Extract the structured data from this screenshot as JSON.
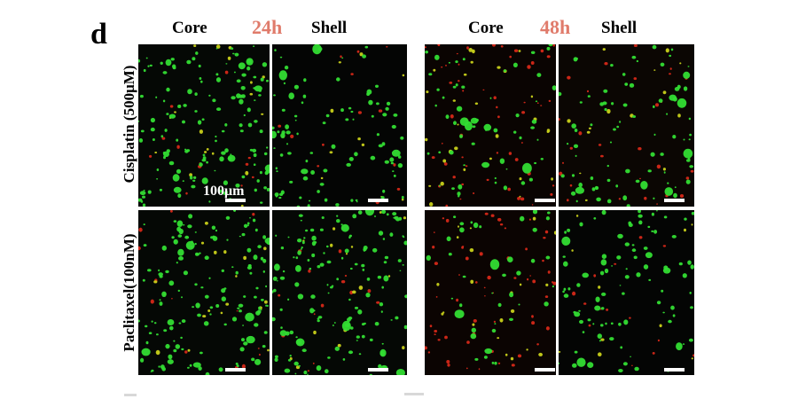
{
  "figure": {
    "panel_letter": "d",
    "time_points": [
      "24h",
      "48h"
    ],
    "columns": [
      "Core",
      "Shell",
      "Core",
      "Shell"
    ],
    "rows": [
      "Cisplatin (500μM)",
      "Paclitaxel(100nM)"
    ],
    "scale_bar_label": "100μm",
    "colors": {
      "live_stain": "#33dd33",
      "dead_stain": "#e02a1a",
      "time_label": "#e07b6b",
      "background": "#000000"
    },
    "panels": [
      {
        "name": "cisplatin-24h-core",
        "density": "high-green"
      },
      {
        "name": "cisplatin-24h-shell",
        "density": "medium-green"
      },
      {
        "name": "cisplatin-48h-core",
        "density": "low-mixed"
      },
      {
        "name": "cisplatin-48h-shell",
        "density": "medium-mixed"
      },
      {
        "name": "paclitaxel-24h-core",
        "density": "high-green"
      },
      {
        "name": "paclitaxel-24h-shell",
        "density": "high-green"
      },
      {
        "name": "paclitaxel-48h-core",
        "density": "low-red"
      },
      {
        "name": "paclitaxel-48h-shell",
        "density": "medium-green"
      }
    ]
  }
}
